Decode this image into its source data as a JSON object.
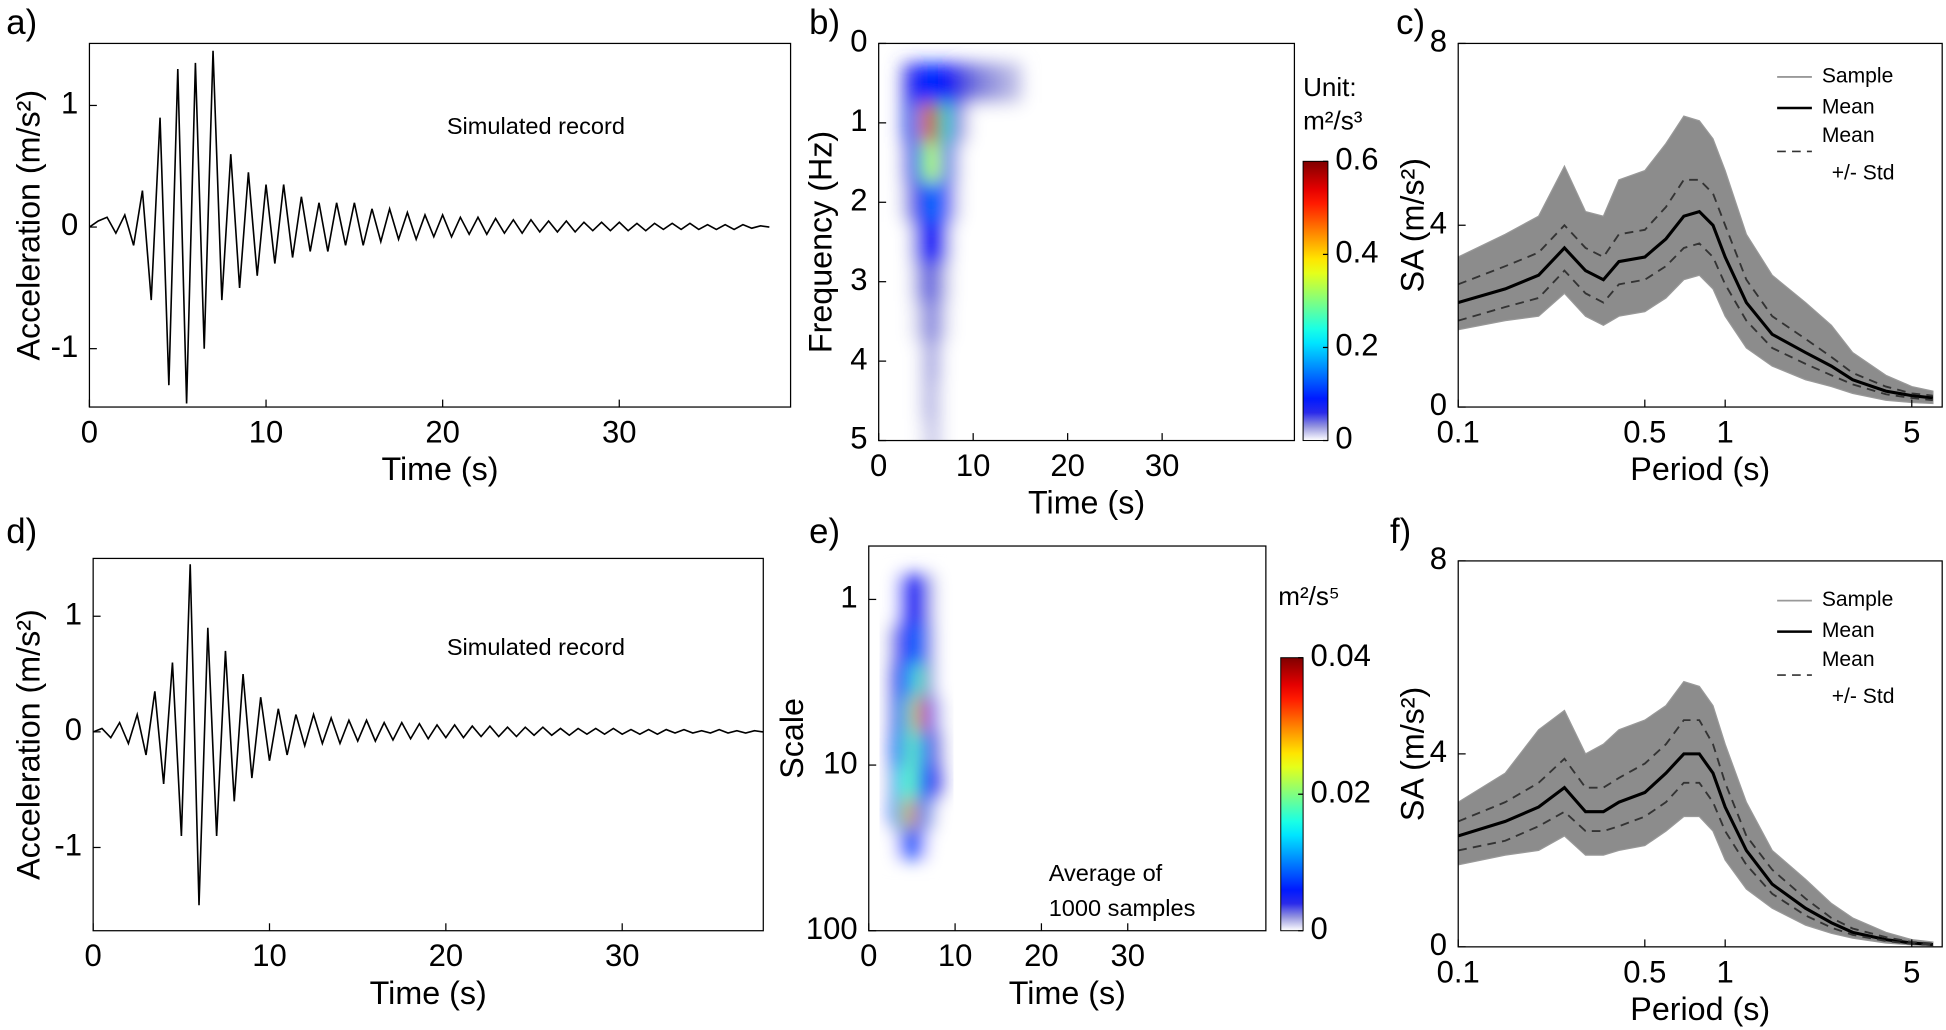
{
  "chart_data": [
    {
      "type": "line",
      "label": "a)",
      "annotation": "Simulated record",
      "xlabel": "Time (s)",
      "ylabel": "Acceleration (m/s²)",
      "color": "#000000",
      "x": [
        0,
        0.5,
        1,
        1.5,
        2,
        2.5,
        3,
        3.5,
        4,
        4.5,
        5,
        5.5,
        6,
        6.5,
        7,
        7.5,
        8,
        8.5,
        9,
        9.5,
        10,
        10.5,
        11,
        11.5,
        12,
        12.5,
        13,
        13.5,
        14,
        14.5,
        15,
        15.5,
        16,
        16.5,
        17,
        17.5,
        18,
        18.5,
        19,
        19.5,
        20,
        20.5,
        21,
        21.5,
        22,
        22.5,
        23,
        23.5,
        24,
        24.5,
        25,
        25.5,
        26,
        26.5,
        27,
        27.5,
        28,
        28.5,
        29,
        29.5,
        30,
        30.5,
        31,
        31.5,
        32,
        32.5,
        33,
        33.5,
        34,
        34.5,
        35,
        35.5,
        36,
        36.5,
        37,
        37.5,
        38,
        38.5
      ],
      "values": [
        0,
        0.05,
        0.08,
        -0.05,
        0.1,
        -0.15,
        0.3,
        -0.6,
        0.9,
        -1.3,
        1.3,
        -1.45,
        1.35,
        -1.0,
        1.45,
        -0.6,
        0.6,
        -0.5,
        0.45,
        -0.4,
        0.35,
        -0.3,
        0.35,
        -0.25,
        0.25,
        -0.2,
        0.2,
        -0.2,
        0.2,
        -0.15,
        0.2,
        -0.15,
        0.15,
        -0.12,
        0.15,
        -0.1,
        0.12,
        -0.1,
        0.1,
        -0.08,
        0.1,
        -0.08,
        0.08,
        -0.06,
        0.08,
        -0.06,
        0.07,
        -0.05,
        0.06,
        -0.05,
        0.06,
        -0.04,
        0.05,
        -0.04,
        0.05,
        -0.04,
        0.04,
        -0.03,
        0.04,
        -0.03,
        0.04,
        -0.03,
        0.03,
        -0.03,
        0.03,
        -0.02,
        0.03,
        -0.02,
        0.03,
        -0.02,
        0.02,
        -0.02,
        0.02,
        -0.02,
        0.02,
        -0.01,
        0.01,
        0
      ],
      "xlim": [
        0,
        39.7
      ],
      "ylim": [
        -1.48,
        1.51
      ],
      "xticks": [
        0,
        10,
        20,
        30
      ],
      "yticks": [
        -1,
        0,
        1
      ]
    },
    {
      "type": "heatmap",
      "label": "b)",
      "xlabel": "Time (s)",
      "ylabel": "Frequency (Hz)",
      "x": [
        3,
        4,
        5,
        6,
        7,
        8,
        9,
        10,
        12,
        14
      ],
      "y": [
        0.5,
        1,
        1.5,
        2,
        2.5,
        3,
        3.5,
        4,
        4.5,
        5
      ],
      "z": [
        [
          0.05,
          0.08,
          0.1,
          0.1,
          0.08,
          0.06,
          0.05,
          0.04,
          0.03,
          0.02
        ],
        [
          0.05,
          0.15,
          0.45,
          0.6,
          0.25,
          0.05,
          0.02,
          0,
          0,
          0
        ],
        [
          0.03,
          0.1,
          0.3,
          0.35,
          0.15,
          0.03,
          0,
          0,
          0,
          0
        ],
        [
          0.02,
          0.06,
          0.12,
          0.15,
          0.08,
          0.02,
          0,
          0,
          0,
          0
        ],
        [
          0,
          0.04,
          0.08,
          0.08,
          0.05,
          0,
          0,
          0,
          0,
          0
        ],
        [
          0,
          0.02,
          0.05,
          0.04,
          0.02,
          0,
          0,
          0,
          0,
          0
        ],
        [
          0,
          0.01,
          0.03,
          0.04,
          0.01,
          0,
          0,
          0,
          0,
          0
        ],
        [
          0,
          0,
          0.02,
          0.03,
          0,
          0,
          0,
          0,
          0,
          0
        ],
        [
          0,
          0,
          0.02,
          0.02,
          0,
          0,
          0,
          0,
          0,
          0
        ],
        [
          0,
          0,
          0.01,
          0.02,
          0,
          0,
          0,
          0,
          0,
          0
        ]
      ],
      "xlim": [
        0,
        44
      ],
      "ylim": [
        0,
        5
      ],
      "y_reversed": true,
      "xticks": [
        0,
        10,
        20,
        30
      ],
      "yticks": [
        0,
        1,
        2,
        3,
        4,
        5
      ],
      "colorbar": {
        "label": [
          "Unit:",
          "m²/s³"
        ],
        "lim": [
          0,
          0.6
        ],
        "ticks": [
          0,
          0.2,
          0.4,
          0.6
        ]
      }
    },
    {
      "type": "spectra",
      "label": "c)",
      "xlabel": "Period (s)",
      "ylabel": "SA (m/s²)",
      "xscale": "log",
      "legend": "upper right",
      "x": [
        0.1,
        0.15,
        0.2,
        0.25,
        0.3,
        0.35,
        0.4,
        0.5,
        0.6,
        0.7,
        0.8,
        0.9,
        1,
        1.2,
        1.5,
        2,
        2.5,
        3,
        4,
        5,
        6
      ],
      "series": [
        {
          "name": "Sample",
          "color": "#999999",
          "upper": [
            3.3,
            3.8,
            4.2,
            5.3,
            4.3,
            4.2,
            5.0,
            5.2,
            5.8,
            6.4,
            6.3,
            5.9,
            5.2,
            3.8,
            2.9,
            2.3,
            1.8,
            1.2,
            0.7,
            0.45,
            0.35
          ],
          "lower": [
            1.7,
            1.9,
            2.0,
            2.5,
            2.0,
            1.8,
            2.0,
            2.1,
            2.4,
            2.8,
            2.9,
            2.6,
            2.0,
            1.3,
            0.9,
            0.6,
            0.45,
            0.3,
            0.15,
            0.1,
            0.08
          ]
        },
        {
          "name": "Mean",
          "color": "#000000",
          "values": [
            2.3,
            2.6,
            2.9,
            3.5,
            3.0,
            2.8,
            3.2,
            3.3,
            3.7,
            4.2,
            4.3,
            4.0,
            3.3,
            2.3,
            1.6,
            1.2,
            0.9,
            0.6,
            0.35,
            0.25,
            0.2
          ]
        },
        {
          "name": [
            "Mean",
            "+/- Std"
          ],
          "color": "#333333",
          "dashed": true,
          "upper": [
            2.7,
            3.1,
            3.4,
            4.0,
            3.5,
            3.3,
            3.8,
            3.9,
            4.4,
            5.0,
            5.0,
            4.7,
            4.0,
            2.8,
            2.0,
            1.5,
            1.1,
            0.75,
            0.45,
            0.3,
            0.25
          ],
          "lower": [
            1.9,
            2.2,
            2.4,
            3.0,
            2.5,
            2.3,
            2.7,
            2.8,
            3.1,
            3.5,
            3.6,
            3.3,
            2.7,
            1.9,
            1.3,
            0.95,
            0.7,
            0.5,
            0.28,
            0.2,
            0.15
          ]
        }
      ],
      "xlim": [
        0.1,
        6.5
      ],
      "ylim": [
        0,
        8
      ],
      "xticks": [
        0.1,
        0.5,
        1,
        5
      ],
      "yticks": [
        0,
        4,
        8
      ]
    },
    {
      "type": "line",
      "label": "d)",
      "annotation": "Simulated record",
      "xlabel": "Time (s)",
      "ylabel": "Acceleration (m/s²)",
      "color": "#000000",
      "x": [
        0,
        0.5,
        1,
        1.5,
        2,
        2.5,
        3,
        3.5,
        4,
        4.5,
        5,
        5.5,
        6,
        6.5,
        7,
        7.5,
        8,
        8.5,
        9,
        9.5,
        10,
        10.5,
        11,
        11.5,
        12,
        12.5,
        13,
        13.5,
        14,
        14.5,
        15,
        15.5,
        16,
        16.5,
        17,
        17.5,
        18,
        18.5,
        19,
        19.5,
        20,
        20.5,
        21,
        21.5,
        22,
        22.5,
        23,
        23.5,
        24,
        24.5,
        25,
        25.5,
        26,
        26.5,
        27,
        27.5,
        28,
        28.5,
        29,
        29.5,
        30,
        30.5,
        31,
        31.5,
        32,
        32.5,
        33,
        33.5,
        34,
        34.5,
        35,
        35.5,
        36,
        36.5,
        37,
        37.5,
        38
      ],
      "values": [
        0,
        0.03,
        -0.05,
        0.08,
        -0.1,
        0.15,
        -0.2,
        0.35,
        -0.45,
        0.6,
        -0.9,
        1.45,
        -1.5,
        0.9,
        -0.9,
        0.7,
        -0.6,
        0.5,
        -0.4,
        0.3,
        -0.25,
        0.2,
        -0.2,
        0.15,
        -0.12,
        0.15,
        -0.1,
        0.12,
        -0.1,
        0.1,
        -0.08,
        0.1,
        -0.08,
        0.08,
        -0.07,
        0.08,
        -0.06,
        0.07,
        -0.06,
        0.06,
        -0.05,
        0.06,
        -0.05,
        0.05,
        -0.04,
        0.05,
        -0.04,
        0.04,
        -0.04,
        0.04,
        -0.03,
        0.04,
        -0.03,
        0.03,
        -0.03,
        0.03,
        -0.02,
        0.03,
        -0.02,
        0.03,
        -0.02,
        0.02,
        -0.02,
        0.02,
        -0.02,
        0.02,
        -0.01,
        0.02,
        -0.01,
        0.01,
        -0.01,
        0.02,
        -0.01,
        0.01,
        -0.01,
        0.01,
        0
      ],
      "xlim": [
        0,
        38
      ],
      "ylim": [
        -1.72,
        1.5
      ],
      "xticks": [
        0,
        10,
        20,
        30
      ],
      "yticks": [
        -1,
        0,
        1
      ]
    },
    {
      "type": "heatmap",
      "label": "e)",
      "xlabel": "Time (s)",
      "ylabel": "Scale",
      "annotation": [
        "Average of",
        "1000 samples"
      ],
      "x": [
        3,
        4,
        5,
        6,
        7,
        8
      ],
      "y": [
        1,
        2,
        3,
        5,
        8,
        13,
        20,
        30
      ],
      "yscale": "log",
      "z": [
        [
          0,
          0.005,
          0.004,
          0.006,
          0.002,
          0
        ],
        [
          0.002,
          0.006,
          0.008,
          0.01,
          0.003,
          0
        ],
        [
          0.003,
          0.008,
          0.012,
          0.02,
          0.004,
          0
        ],
        [
          0.003,
          0.01,
          0.02,
          0.035,
          0.006,
          0.001
        ],
        [
          0.004,
          0.012,
          0.02,
          0.012,
          0.004,
          0.002
        ],
        [
          0.003,
          0.015,
          0.02,
          0.01,
          0.006,
          0.003
        ],
        [
          0.005,
          0.02,
          0.035,
          0.012,
          0.003,
          0
        ],
        [
          0,
          0.006,
          0.01,
          0.005,
          0,
          0
        ]
      ],
      "xlim": [
        0,
        46
      ],
      "ylim": [
        0.476,
        100
      ],
      "y_reversed": true,
      "xticks": [
        0,
        10,
        20,
        30
      ],
      "yticks": [
        1,
        10,
        100
      ],
      "colorbar": {
        "label": [
          "m²/s⁵"
        ],
        "lim": [
          0,
          0.04
        ],
        "ticks": [
          0,
          0.02,
          0.04
        ]
      }
    },
    {
      "type": "spectra",
      "label": "f)",
      "xlabel": "Period (s)",
      "ylabel": "SA (m/s²)",
      "xscale": "log",
      "legend": "upper right",
      "x": [
        0.1,
        0.15,
        0.2,
        0.25,
        0.3,
        0.35,
        0.4,
        0.5,
        0.6,
        0.7,
        0.8,
        0.9,
        1,
        1.2,
        1.5,
        2,
        2.5,
        3,
        4,
        5,
        6
      ],
      "series": [
        {
          "name": "Sample",
          "color": "#999999",
          "upper": [
            3.0,
            3.6,
            4.5,
            4.9,
            4.0,
            4.2,
            4.5,
            4.7,
            5.0,
            5.5,
            5.4,
            5.0,
            4.2,
            3.0,
            2.0,
            1.4,
            0.9,
            0.6,
            0.3,
            0.15,
            0.1
          ],
          "lower": [
            1.7,
            1.9,
            2.0,
            2.3,
            1.9,
            1.9,
            2.0,
            2.1,
            2.4,
            2.7,
            2.7,
            2.4,
            1.8,
            1.2,
            0.8,
            0.45,
            0.28,
            0.18,
            0.08,
            0.04,
            0.02
          ]
        },
        {
          "name": "Mean",
          "color": "#000000",
          "values": [
            2.3,
            2.6,
            2.9,
            3.3,
            2.8,
            2.8,
            3.0,
            3.2,
            3.6,
            4.0,
            4.0,
            3.6,
            2.9,
            2.0,
            1.3,
            0.8,
            0.5,
            0.3,
            0.15,
            0.08,
            0.05
          ]
        },
        {
          "name": [
            "Mean",
            "+/- Std"
          ],
          "color": "#333333",
          "dashed": true,
          "upper": [
            2.6,
            3.0,
            3.4,
            3.9,
            3.3,
            3.3,
            3.5,
            3.8,
            4.2,
            4.7,
            4.7,
            4.2,
            3.4,
            2.3,
            1.6,
            1.0,
            0.6,
            0.38,
            0.2,
            0.1,
            0.07
          ],
          "lower": [
            2.0,
            2.2,
            2.5,
            2.8,
            2.4,
            2.4,
            2.5,
            2.7,
            3.0,
            3.4,
            3.4,
            3.0,
            2.4,
            1.7,
            1.1,
            0.65,
            0.4,
            0.25,
            0.12,
            0.06,
            0.04
          ]
        }
      ],
      "xlim": [
        0.1,
        6.5
      ],
      "ylim": [
        0,
        8
      ],
      "xticks": [
        0.1,
        0.5,
        1,
        5
      ],
      "yticks": [
        0,
        4,
        8
      ]
    }
  ]
}
